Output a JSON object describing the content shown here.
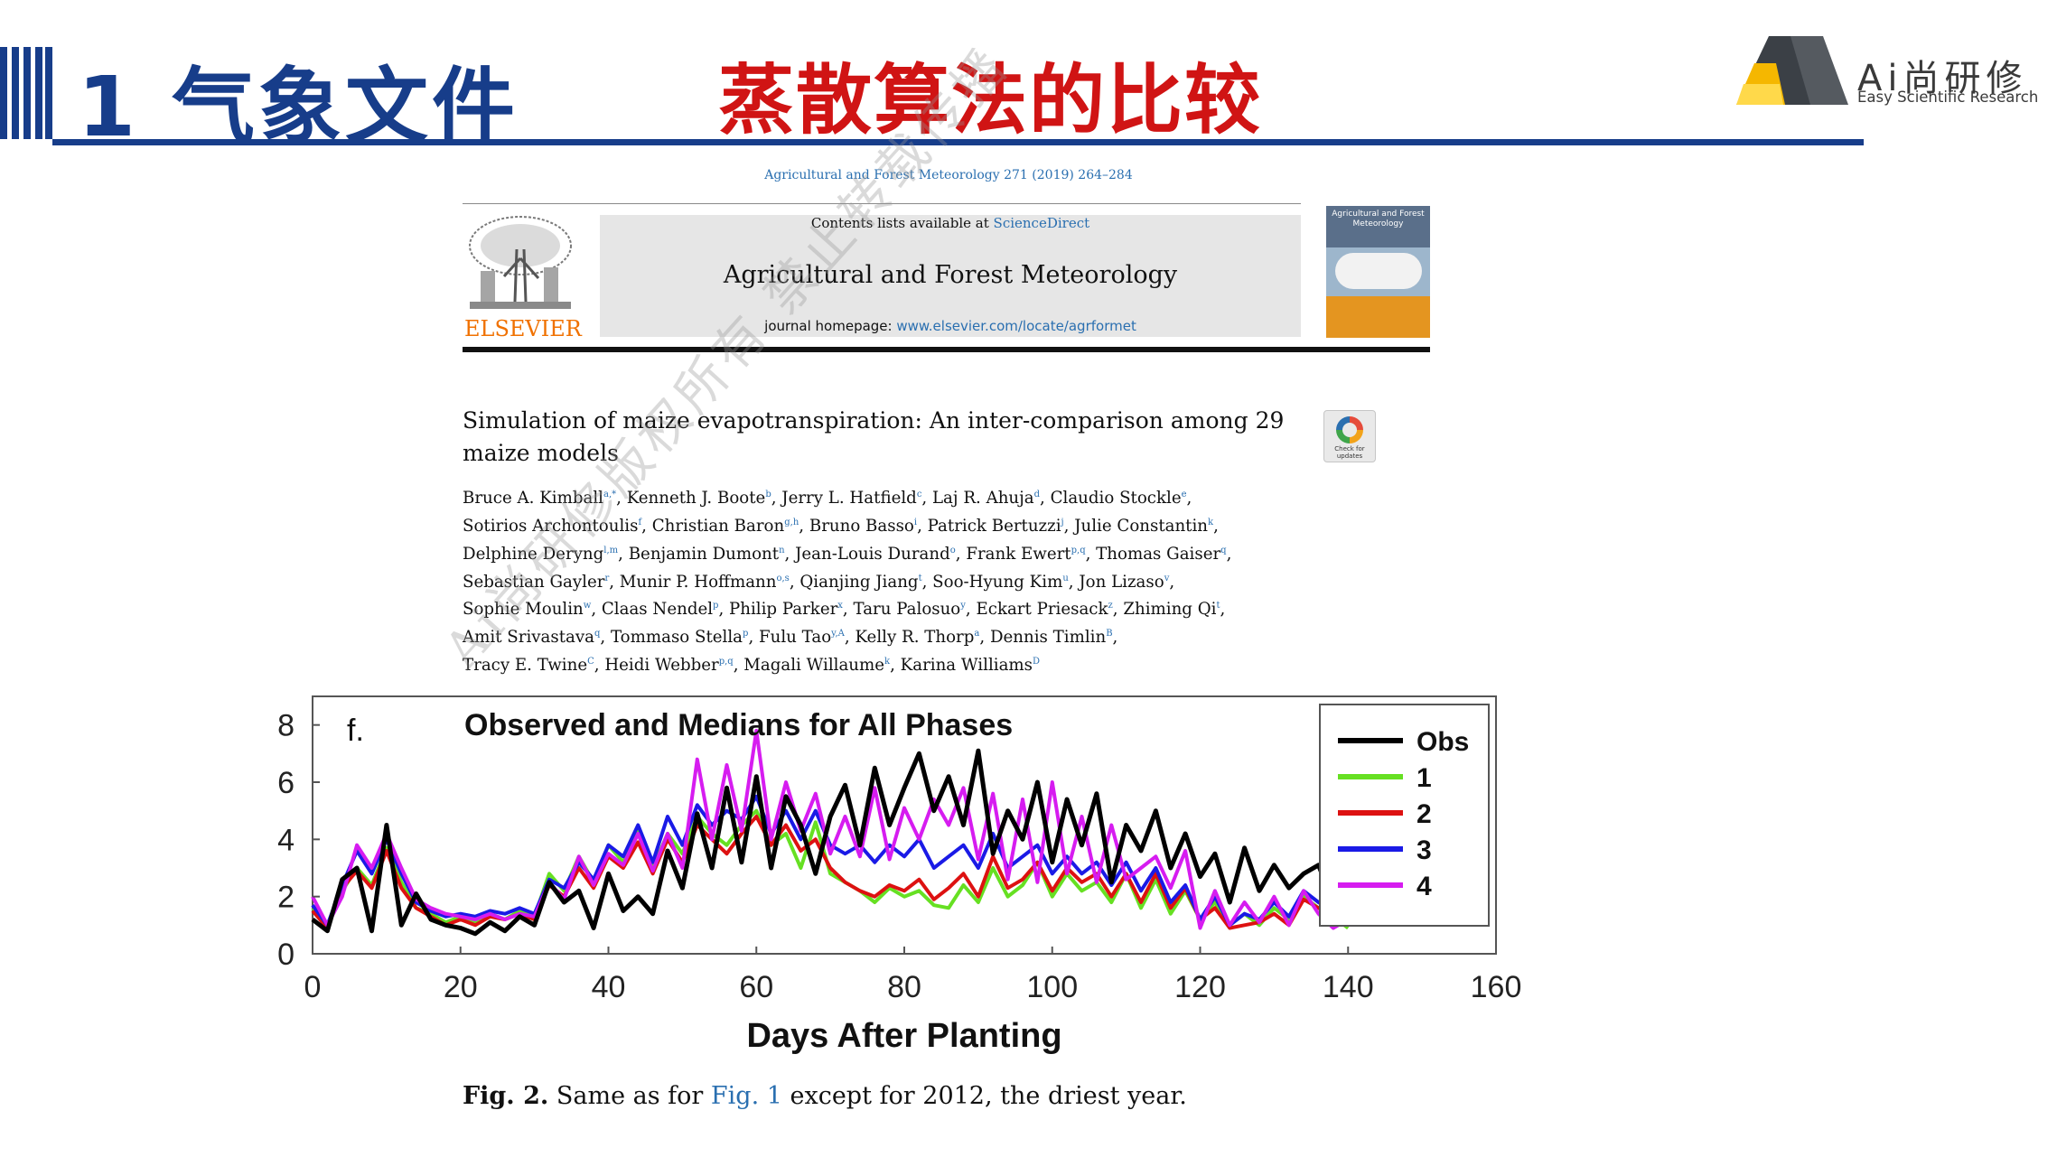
{
  "header": {
    "section_title": "1 气象文件",
    "slide_title": "蒸散算法的比较",
    "logo_text": "Ai尚研修",
    "logo_subtitle": "Easy Scientific Research"
  },
  "journal": {
    "citation": "Agricultural and Forest Meteorology 271 (2019) 264–284",
    "contents_prefix": "Contents lists available at ",
    "contents_link": "ScienceDirect",
    "publisher": "ELSEVIER",
    "name": "Agricultural and Forest Meteorology",
    "homepage_prefix": "journal homepage: ",
    "homepage_url": "www.elsevier.com/locate/agrformet",
    "cover_text": "Agricultural and Forest Meteorology"
  },
  "article": {
    "title": "Simulation of maize evapotranspiration: An inter-comparison among 29 maize models",
    "check_badge": "Check for updates",
    "authors_html": "Bruce A. Kimball<sup>a,*</sup>, Kenneth J. Boote<sup>b</sup>, Jerry L. Hatfield<sup>c</sup>, Laj R. Ahuja<sup>d</sup>, Claudio Stockle<sup>e</sup>,<br>Sotirios Archontoulis<sup>f</sup>, Christian Baron<sup>g,h</sup>, Bruno Basso<sup>i</sup>, Patrick Bertuzzi<sup>j</sup>, Julie Constantin<sup>k</sup>,<br>Delphine Deryng<sup>l,m</sup>, Benjamin Dumont<sup>n</sup>, Jean-Louis Durand<sup>o</sup>, Frank Ewert<sup>p,q</sup>, Thomas Gaiser<sup>q</sup>,<br>Sebastian Gayler<sup>r</sup>, Munir P. Hoffmann<sup>o,s</sup>, Qianjing Jiang<sup>t</sup>, Soo-Hyung Kim<sup>u</sup>, Jon Lizaso<sup>v</sup>,<br>Sophie Moulin<sup>w</sup>, Claas Nendel<sup>p</sup>, Philip Parker<sup>x</sup>, Taru Palosuo<sup>y</sup>, Eckart Priesack<sup>z</sup>, Zhiming Qi<sup>t</sup>,<br>Amit Srivastava<sup>q</sup>, Tommaso Stella<sup>p</sup>, Fulu Tao<sup>y,A</sup>, Kelly R. Thorp<sup>a</sup>, Dennis Timlin<sup>B</sup>,<br>Tracy E. Twine<sup>C</sup>, Heidi Webber<sup>p,q</sup>, Magali Willaume<sup>k</sup>, Karina Williams<sup>D</sup>"
  },
  "figure": {
    "caption_label": "Fig. 2.",
    "caption_pre": " Same as for ",
    "caption_ref": "Fig. 1",
    "caption_post": " except for 2012, the driest year."
  },
  "watermark": "Ai尚研修版权所有 禁止转载传播",
  "chart_data": {
    "type": "line",
    "panel_label": "f.",
    "title": "Observed and Medians for All Phases",
    "xlabel": "Days After Planting",
    "ylabel": "",
    "xlim": [
      0,
      160
    ],
    "ylim": [
      0,
      9
    ],
    "xticks": [
      0,
      20,
      40,
      60,
      80,
      100,
      120,
      140,
      160
    ],
    "yticks": [
      0,
      2,
      4,
      6,
      8
    ],
    "legend_position": "top-right",
    "x": [
      0,
      2,
      4,
      6,
      8,
      10,
      12,
      14,
      16,
      18,
      20,
      22,
      24,
      26,
      28,
      30,
      32,
      34,
      36,
      38,
      40,
      42,
      44,
      46,
      48,
      50,
      52,
      54,
      56,
      58,
      60,
      62,
      64,
      66,
      68,
      70,
      72,
      74,
      76,
      78,
      80,
      82,
      84,
      86,
      88,
      90,
      92,
      94,
      96,
      98,
      100,
      102,
      104,
      106,
      108,
      110,
      112,
      114,
      116,
      118,
      120,
      122,
      124,
      126,
      128,
      130,
      132,
      134,
      136,
      138,
      140
    ],
    "series": [
      {
        "name": "Obs",
        "color": "#000000",
        "values": [
          1.2,
          0.8,
          2.6,
          3.0,
          0.8,
          4.5,
          1.0,
          2.1,
          1.2,
          1.0,
          0.9,
          0.7,
          1.1,
          0.8,
          1.3,
          1.0,
          2.5,
          1.8,
          2.2,
          0.9,
          2.8,
          1.5,
          2.0,
          1.4,
          3.6,
          2.3,
          4.9,
          3.0,
          5.8,
          3.2,
          6.2,
          3.0,
          5.5,
          4.5,
          2.8,
          4.8,
          5.9,
          3.8,
          6.5,
          4.5,
          5.8,
          7.0,
          5.0,
          6.2,
          4.5,
          7.1,
          3.5,
          5.0,
          4.0,
          6.0,
          3.2,
          5.4,
          3.8,
          5.6,
          2.5,
          4.5,
          3.6,
          5.0,
          3.0,
          4.2,
          2.7,
          3.5,
          1.8,
          3.7,
          2.2,
          3.1,
          2.3,
          2.8,
          3.1,
          1.8,
          1.9
        ]
      },
      {
        "name": "1",
        "color": "#66e022",
        "values": [
          1.6,
          1.0,
          2.2,
          3.0,
          2.4,
          3.7,
          2.5,
          1.6,
          1.4,
          1.1,
          1.3,
          1.1,
          1.4,
          1.2,
          1.5,
          1.3,
          2.8,
          2.2,
          3.4,
          2.5,
          3.8,
          3.2,
          4.4,
          3.0,
          4.2,
          3.5,
          4.8,
          4.2,
          3.8,
          4.5,
          5.0,
          3.8,
          4.2,
          3.0,
          4.6,
          2.8,
          2.5,
          2.2,
          1.8,
          2.3,
          2.0,
          2.2,
          1.7,
          1.6,
          2.4,
          1.8,
          3.0,
          2.0,
          2.4,
          3.2,
          2.0,
          2.8,
          2.2,
          2.5,
          1.8,
          2.8,
          1.6,
          2.6,
          1.4,
          2.2,
          1.2,
          1.8,
          1.0,
          1.4,
          1.0,
          1.6,
          1.2,
          2.0,
          1.6,
          1.3,
          0.9
        ]
      },
      {
        "name": "2",
        "color": "#dd1111",
        "values": [
          1.5,
          0.9,
          2.3,
          2.9,
          2.3,
          3.6,
          2.3,
          1.6,
          1.3,
          1.0,
          1.2,
          1.0,
          1.3,
          1.2,
          1.4,
          1.2,
          2.4,
          2.0,
          3.0,
          2.3,
          3.4,
          3.0,
          3.9,
          2.8,
          4.0,
          3.2,
          4.5,
          4.0,
          3.5,
          4.2,
          4.8,
          3.8,
          4.5,
          3.6,
          4.0,
          3.0,
          2.5,
          2.2,
          2.0,
          2.4,
          2.2,
          2.6,
          1.9,
          2.3,
          2.8,
          2.0,
          3.4,
          2.3,
          2.6,
          3.2,
          2.2,
          3.0,
          2.5,
          2.8,
          2.0,
          2.8,
          1.8,
          2.8,
          1.6,
          2.3,
          1.2,
          1.6,
          0.9,
          1.0,
          1.1,
          1.4,
          1.0,
          1.9,
          1.6,
          1.4,
          1.0
        ]
      },
      {
        "name": "3",
        "color": "#1a1ae6",
        "values": [
          1.7,
          1.0,
          2.4,
          3.6,
          2.8,
          4.0,
          2.8,
          1.8,
          1.5,
          1.3,
          1.4,
          1.3,
          1.5,
          1.4,
          1.6,
          1.4,
          2.6,
          2.3,
          3.2,
          2.6,
          3.8,
          3.4,
          4.5,
          3.2,
          4.8,
          3.8,
          5.2,
          4.5,
          5.0,
          4.7,
          5.5,
          4.2,
          5.0,
          4.0,
          5.0,
          3.8,
          3.5,
          3.8,
          3.2,
          3.8,
          3.4,
          4.0,
          3.0,
          3.4,
          3.8,
          3.0,
          4.2,
          3.0,
          3.4,
          3.8,
          2.8,
          3.4,
          2.8,
          3.2,
          2.4,
          3.2,
          2.2,
          3.0,
          1.8,
          2.4,
          1.2,
          2.0,
          1.0,
          1.4,
          1.2,
          1.8,
          1.3,
          2.2,
          1.8,
          1.5,
          1.1
        ]
      },
      {
        "name": "4",
        "color": "#d61cf0",
        "values": [
          2.0,
          1.0,
          2.0,
          3.8,
          3.0,
          4.2,
          3.0,
          1.9,
          1.6,
          1.4,
          1.3,
          1.2,
          1.4,
          1.2,
          1.4,
          1.3,
          2.5,
          1.9,
          3.4,
          2.4,
          3.5,
          3.1,
          4.2,
          2.9,
          4.2,
          3.0,
          6.8,
          4.0,
          6.6,
          4.3,
          7.8,
          4.0,
          6.0,
          4.3,
          5.6,
          3.5,
          4.8,
          3.4,
          5.8,
          3.3,
          5.1,
          4.0,
          5.4,
          4.5,
          5.8,
          3.3,
          5.6,
          2.6,
          5.4,
          2.5,
          6.0,
          2.8,
          4.8,
          2.5,
          4.5,
          2.6,
          3.0,
          3.4,
          2.3,
          3.6,
          0.9,
          2.2,
          1.0,
          1.8,
          1.1,
          2.0,
          1.0,
          2.2,
          1.4,
          0.9,
          1.2
        ]
      }
    ]
  }
}
